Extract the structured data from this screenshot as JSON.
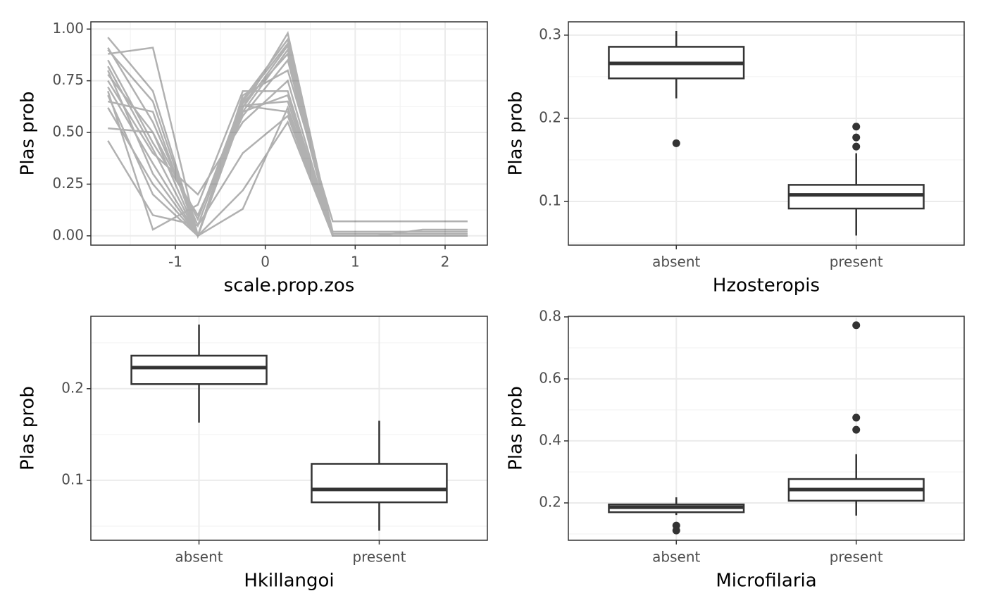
{
  "chart_data": [
    {
      "type": "line",
      "xlabel": "scale.prop.zos",
      "ylabel": "Plas prob",
      "x": [
        -1.75,
        -1.25,
        -0.75,
        -0.25,
        0.25,
        0.75,
        1.25,
        1.75,
        2.25
      ],
      "series": [
        {
          "color": "#000000",
          "values": [
            0.96,
            0.7,
            0.0,
            0.62,
            0.98,
            0.0,
            0.0,
            0.0,
            0.0
          ]
        },
        {
          "color": "#000000",
          "values": [
            0.91,
            0.55,
            0.05,
            0.65,
            0.93,
            0.02,
            0.02,
            0.02,
            0.02
          ]
        },
        {
          "color": "#000000",
          "values": [
            0.88,
            0.91,
            0.0,
            0.6,
            0.9,
            0.0,
            0.0,
            0.0,
            0.0
          ]
        },
        {
          "color": "#000000",
          "values": [
            0.85,
            0.45,
            0.1,
            0.58,
            0.85,
            0.0,
            0.0,
            0.0,
            0.0
          ]
        },
        {
          "color": "#000000",
          "values": [
            0.8,
            0.3,
            0.0,
            0.68,
            0.8,
            0.07,
            0.07,
            0.07,
            0.07
          ]
        },
        {
          "color": "#000000",
          "values": [
            0.75,
            0.4,
            0.2,
            0.55,
            0.75,
            0.0,
            0.0,
            0.0,
            0.0
          ]
        },
        {
          "color": "#000000",
          "values": [
            0.7,
            0.03,
            0.15,
            0.7,
            0.7,
            0.0,
            0.0,
            0.0,
            0.0
          ]
        },
        {
          "color": "#000000",
          "values": [
            0.65,
            0.6,
            0.0,
            0.63,
            0.65,
            0.0,
            0.0,
            0.0,
            0.0
          ]
        },
        {
          "color": "#000000",
          "values": [
            0.62,
            0.25,
            0.0,
            0.13,
            0.62,
            0.0,
            0.0,
            0.0,
            0.0
          ]
        },
        {
          "color": "#000000",
          "values": [
            0.52,
            0.5,
            0.0,
            0.22,
            0.55,
            0.0,
            0.0,
            0.03,
            0.03
          ]
        },
        {
          "color": "#000000",
          "values": [
            0.46,
            0.1,
            0.05,
            0.4,
            0.58,
            0.0,
            0.0,
            0.0,
            0.0
          ]
        },
        {
          "color": "#000000",
          "values": [
            0.72,
            0.35,
            0.0,
            0.64,
            0.88,
            0.0,
            0.0,
            0.0,
            0.0
          ]
        },
        {
          "color": "#000000",
          "values": [
            0.78,
            0.5,
            0.08,
            0.66,
            0.95,
            0.0,
            0.0,
            0.0,
            0.0
          ]
        },
        {
          "color": "#000000",
          "values": [
            0.68,
            0.2,
            0.0,
            0.6,
            0.68,
            0.0,
            0.0,
            0.0,
            0.0
          ]
        },
        {
          "color": "#000000",
          "values": [
            0.9,
            0.65,
            0.0,
            0.62,
            0.92,
            0.01,
            0.01,
            0.01,
            0.01
          ]
        },
        {
          "color": "#000000",
          "values": [
            0.82,
            0.42,
            0.0,
            0.63,
            0.6,
            0.0,
            0.0,
            0.0,
            0.0
          ]
        }
      ],
      "opacity": 0.3,
      "xlim": [
        -1.94,
        2.47
      ],
      "xticks": [
        -1,
        0,
        1,
        2
      ],
      "ylim": [
        -0.045,
        1.035
      ],
      "yticks": [
        {
          "value": 0,
          "label": "0.00"
        },
        {
          "value": 0.25,
          "label": "0.25"
        },
        {
          "value": 0.5,
          "label": "0.50"
        },
        {
          "value": 0.75,
          "label": "0.75"
        },
        {
          "value": 1,
          "label": "1.00"
        }
      ],
      "grid": true
    },
    {
      "type": "box",
      "xlabel": "Hzosteropis",
      "ylabel": "Plas prob",
      "color": "#333333",
      "categories": [
        "absent",
        "present"
      ],
      "boxes": [
        {
          "min": 0.224,
          "q1": 0.248,
          "median": 0.266,
          "q3": 0.286,
          "max": 0.305,
          "outliers": [
            0.17
          ]
        },
        {
          "min": 0.059,
          "q1": 0.0915,
          "median": 0.108,
          "q3": 0.12,
          "max": 0.158,
          "outliers": [
            0.19,
            0.177,
            0.166
          ]
        }
      ],
      "ylim": [
        0.0475,
        0.316
      ],
      "yticks": [
        0.1,
        0.2,
        0.3
      ],
      "grid": true
    },
    {
      "type": "box",
      "xlabel": "Hkillangoi",
      "ylabel": "Plas prob",
      "color": "#333333",
      "categories": [
        "absent",
        "present"
      ],
      "boxes": [
        {
          "min": 0.163,
          "q1": 0.205,
          "median": 0.223,
          "q3": 0.236,
          "max": 0.27,
          "outliers": []
        },
        {
          "min": 0.045,
          "q1": 0.076,
          "median": 0.09,
          "q3": 0.118,
          "max": 0.165,
          "outliers": []
        }
      ],
      "ylim": [
        0.0346,
        0.279
      ],
      "yticks": [
        0.1,
        0.2
      ],
      "grid": true
    },
    {
      "type": "box",
      "xlabel": "Microfilaria",
      "ylabel": "Plas prob",
      "color": "#333333",
      "categories": [
        "absent",
        "present"
      ],
      "boxes": [
        {
          "min": 0.161,
          "q1": 0.17,
          "median": 0.186,
          "q3": 0.195,
          "max": 0.218,
          "outliers": [
            0.127,
            0.111
          ]
        },
        {
          "min": 0.159,
          "q1": 0.207,
          "median": 0.243,
          "q3": 0.277,
          "max": 0.357,
          "outliers": [
            0.773,
            0.475,
            0.436
          ]
        }
      ],
      "ylim": [
        0.0795,
        0.802
      ],
      "yticks": [
        0.2,
        0.4,
        0.6,
        0.8
      ],
      "grid": true
    }
  ]
}
